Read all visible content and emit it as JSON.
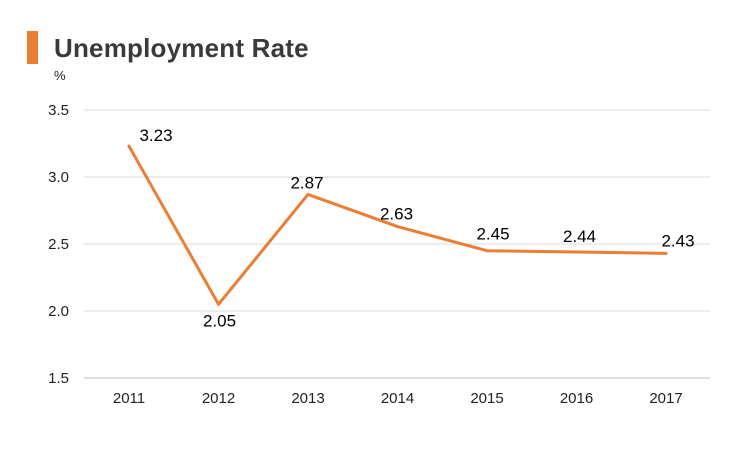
{
  "chart_data": {
    "type": "line",
    "title": "Unemployment Rate",
    "y_unit": "%",
    "x": [
      "2011",
      "2012",
      "2013",
      "2014",
      "2015",
      "2016",
      "2017"
    ],
    "series": [
      {
        "values": [
          3.23,
          2.05,
          2.87,
          2.63,
          2.45,
          2.44,
          2.43
        ],
        "color": "#ed7d31"
      }
    ],
    "data_labels": [
      "3.23",
      "2.05",
      "2.87",
      "2.63",
      "2.45",
      "2.44",
      "2.43"
    ],
    "yticks": [
      "1.5",
      "2.0",
      "2.5",
      "3.0",
      "3.5"
    ],
    "ylim": [
      1.5,
      3.5
    ],
    "grid": true,
    "accent_color": "#ed7d31",
    "gridline_color": "#d9d9d9"
  }
}
